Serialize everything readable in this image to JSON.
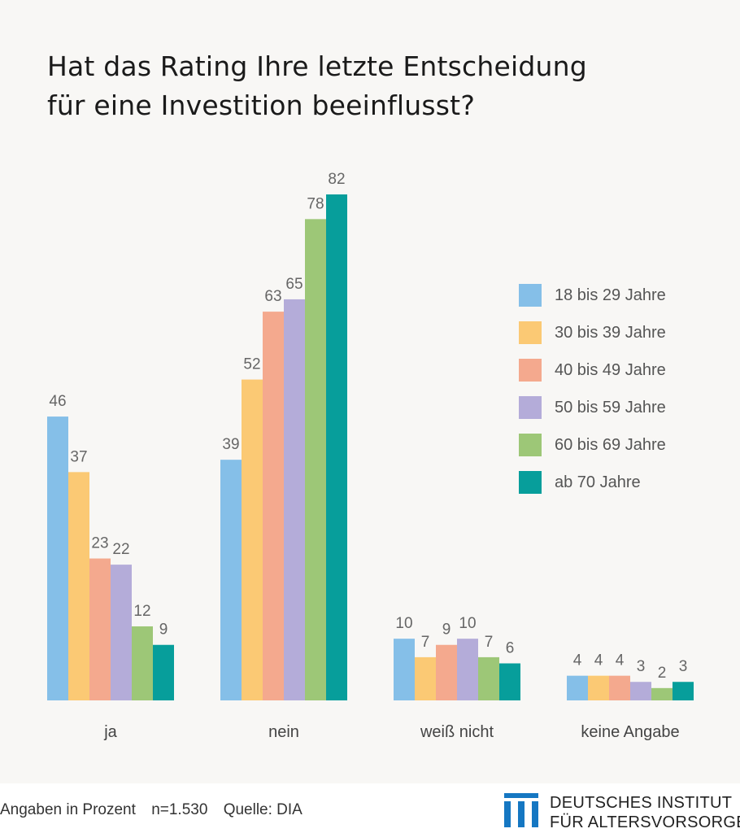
{
  "title": {
    "line1": "Hat das Rating Ihre letzte Entscheidung",
    "line2": "für eine Investition beeinflusst?"
  },
  "chart_data": {
    "type": "bar",
    "title": "Hat das Rating Ihre letzte Entscheidung für eine Investition beeinflusst?",
    "categories": [
      "ja",
      "nein",
      "weiß nicht",
      "keine Angabe"
    ],
    "series": [
      {
        "name": "18 bis 29 Jahre",
        "color": "#85bfe8",
        "values": [
          46,
          39,
          10,
          4
        ]
      },
      {
        "name": "30 bis 39 Jahre",
        "color": "#fbc974",
        "values": [
          37,
          52,
          7,
          4
        ]
      },
      {
        "name": "40 bis 49 Jahre",
        "color": "#f4a98e",
        "values": [
          23,
          63,
          9,
          4
        ]
      },
      {
        "name": "50 bis 59 Jahre",
        "color": "#b4acd9",
        "values": [
          22,
          65,
          10,
          3
        ]
      },
      {
        "name": "60 bis 69 Jahre",
        "color": "#9dc777",
        "values": [
          12,
          78,
          7,
          2
        ]
      },
      {
        "name": "ab 70 Jahre",
        "color": "#079e9b",
        "values": [
          9,
          82,
          6,
          3
        ]
      }
    ],
    "xlabel": "",
    "ylabel": "",
    "ylim": [
      0,
      82
    ],
    "grid": false,
    "legend_position": "right",
    "label_color": "#666666"
  },
  "footer": {
    "unit": "Angaben in Prozent",
    "sample": "n=1.530",
    "source": "Quelle: DIA"
  },
  "brand": {
    "line1": "DEUTSCHES INSTITUT",
    "line2": "FÜR ALTERSVORSORGE",
    "color": "#1577c2",
    "icon": "institute-logo-icon"
  }
}
